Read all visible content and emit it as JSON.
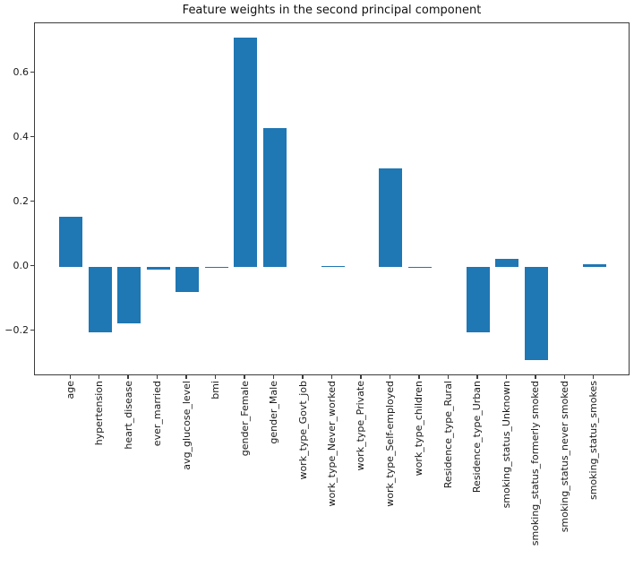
{
  "chart_data": {
    "type": "bar",
    "title": "Feature weights in the second principal component",
    "xlabel": "",
    "ylabel": "",
    "bar_color": "#1f77b4",
    "axis_color": "#3c3c3c",
    "grid": false,
    "legend": null,
    "ylim": [
      -0.34,
      0.755
    ],
    "y_tick_values": [
      0.6,
      0.4,
      0.2,
      0.0,
      -0.2
    ],
    "y_tick_labels": [
      "0.6",
      "0.4",
      "0.2",
      "0.0",
      "−0.2"
    ],
    "categories": [
      "age",
      "hypertension",
      "heart_disease",
      "ever_married",
      "avg_glucose_level",
      "bmi",
      "gender_Female",
      "gender_Male",
      "work_type_Govt_job",
      "work_type_Never_worked",
      "work_type_Private",
      "work_type_Self-employed",
      "work_type_children",
      "Residence_type_Rural",
      "Residence_type_Urban",
      "smoking_status_Unknown",
      "smoking_status_formerly smoked",
      "smoking_status_never smoked",
      "smoking_status_smokes"
    ],
    "values": [
      0.155,
      -0.205,
      -0.175,
      -0.01,
      -0.08,
      -0.005,
      0.71,
      0.43,
      0.0,
      0.003,
      0.0,
      0.305,
      -0.005,
      0.0,
      -0.205,
      0.025,
      -0.29,
      0.0,
      0.008
    ]
  }
}
